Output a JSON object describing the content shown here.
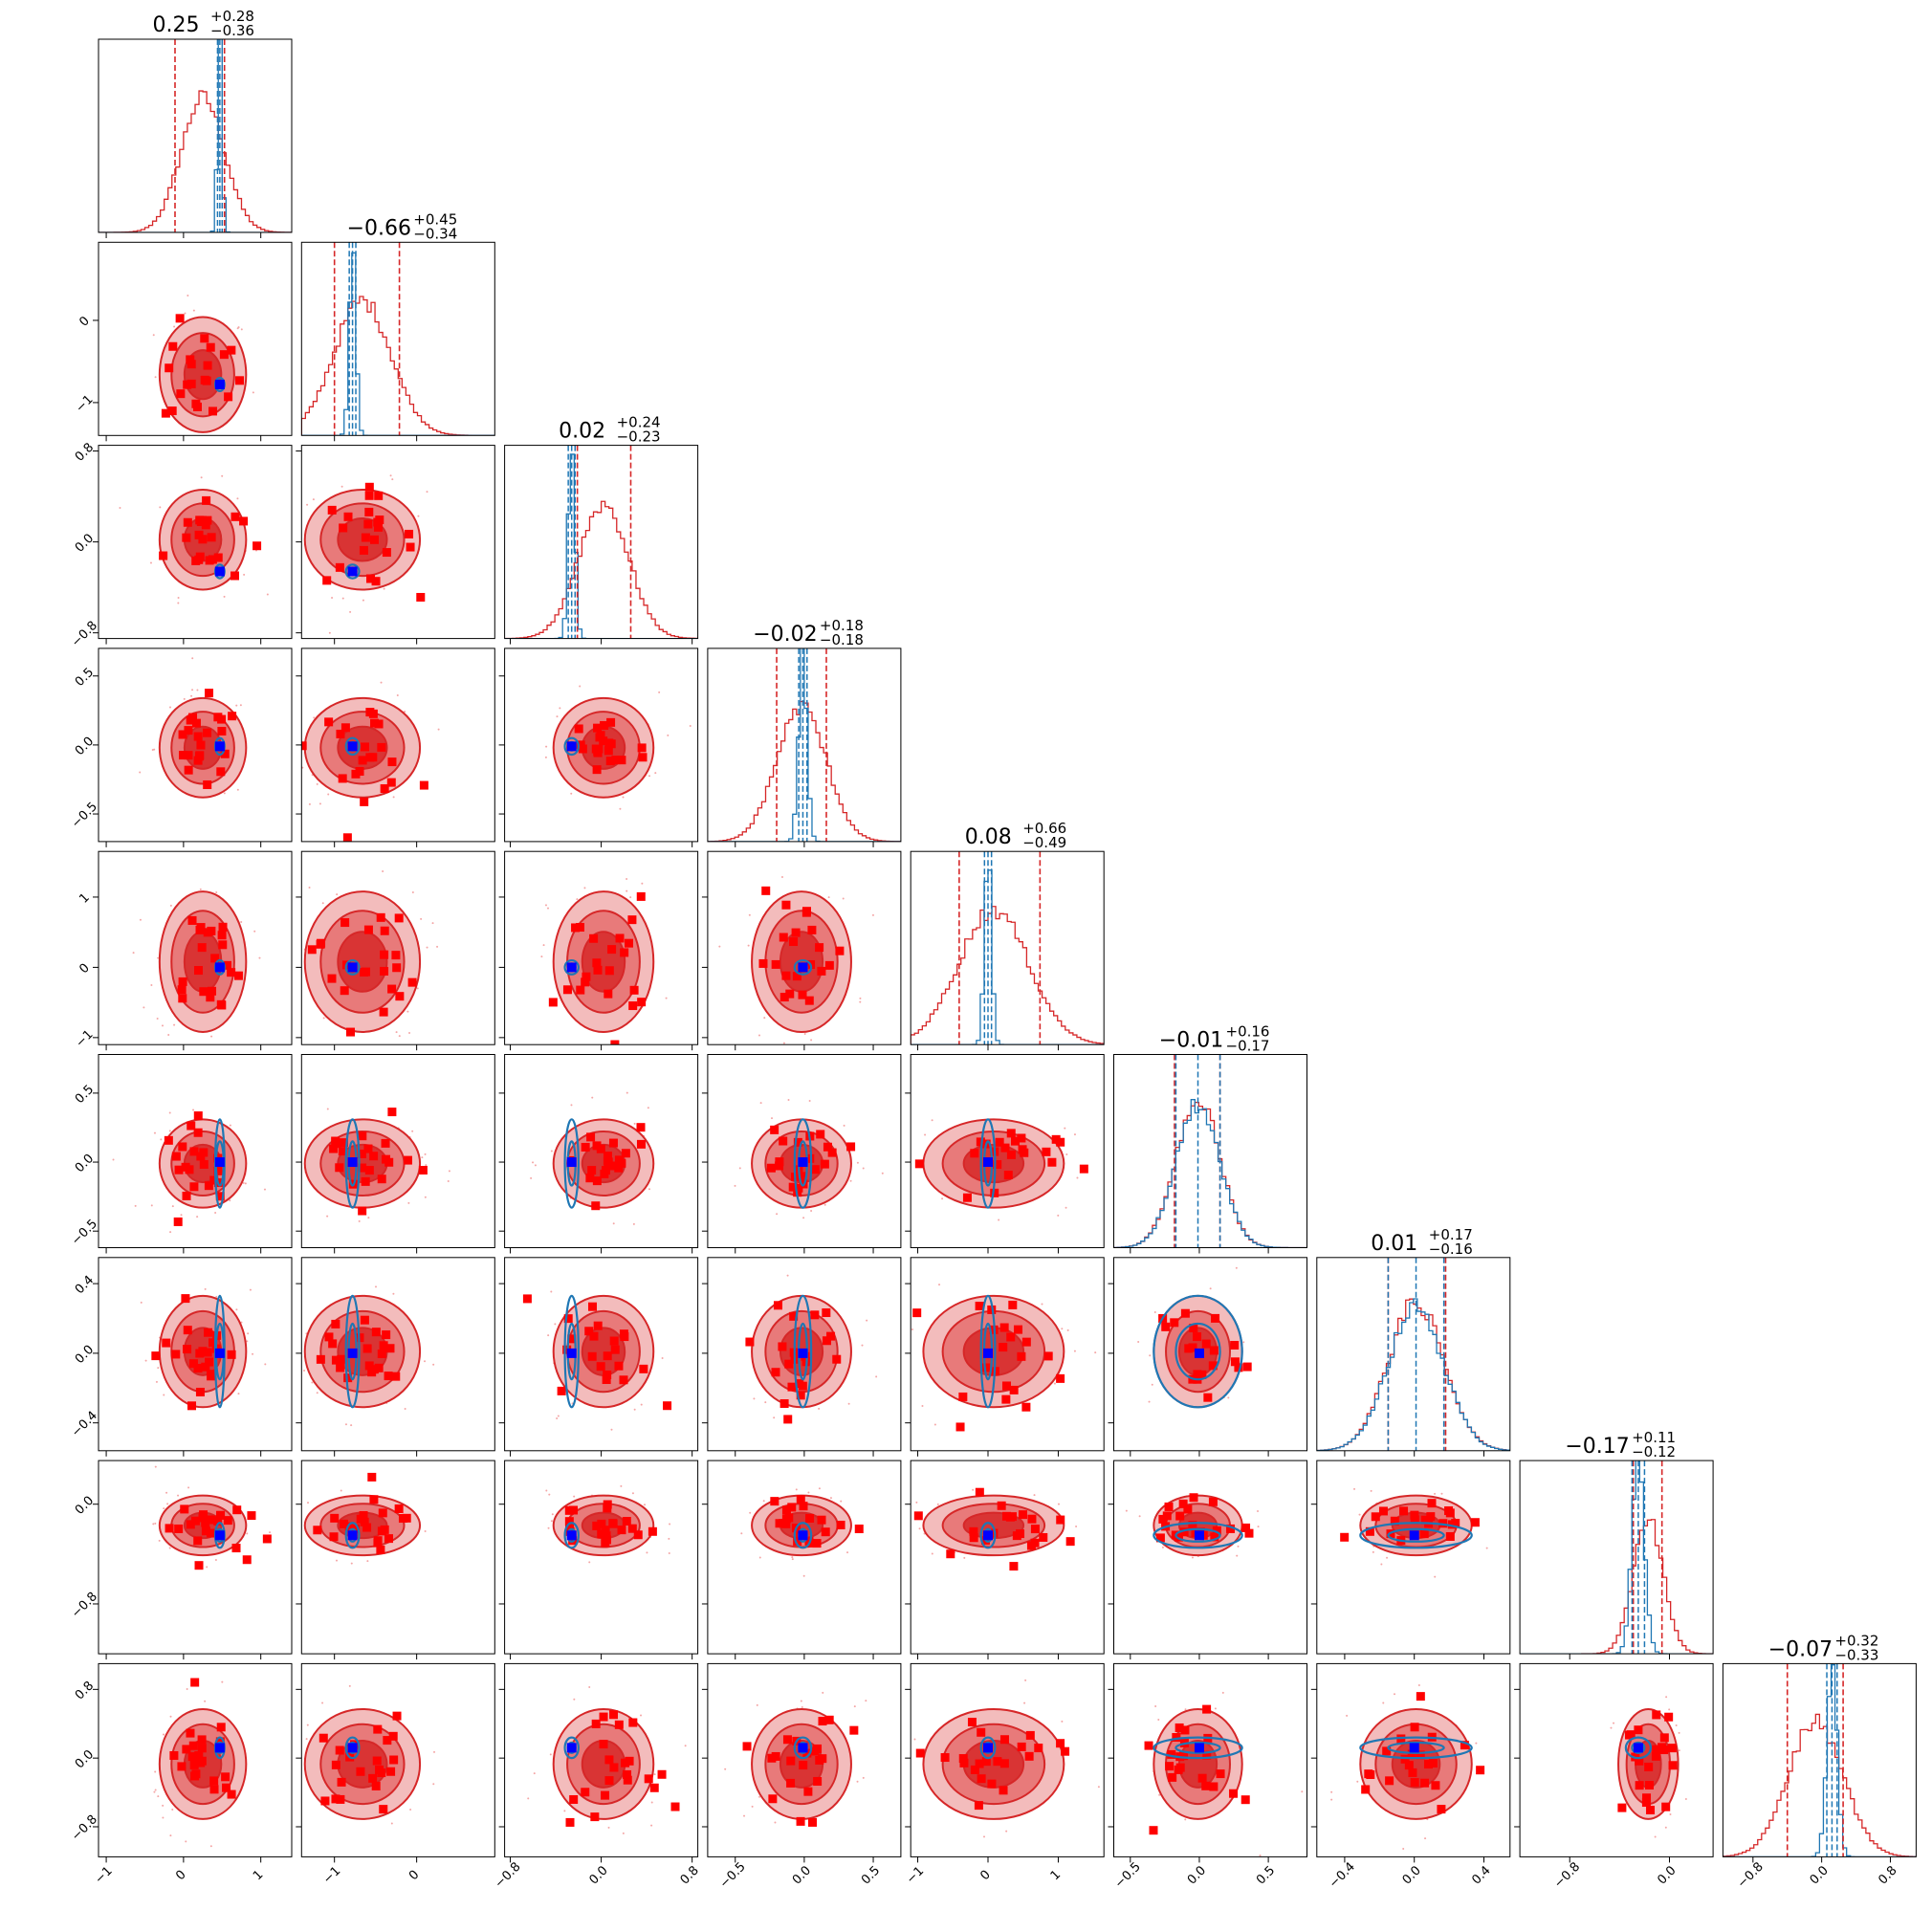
{
  "chart_data": {
    "type": "corner",
    "n_params": 9,
    "colors": {
      "primary": "#d62728",
      "secondary": "#1f77b4",
      "marker_red": "#ff0000",
      "marker_blue": "#0000ff"
    },
    "diagonal_titles": [
      {
        "median": "0.25",
        "plus": "+0.28",
        "minus": "−0.36"
      },
      {
        "median": "−0.66",
        "plus": "+0.45",
        "minus": "−0.34"
      },
      {
        "median": "0.02",
        "plus": "+0.24",
        "minus": "−0.23"
      },
      {
        "median": "−0.02",
        "plus": "+0.18",
        "minus": "−0.18"
      },
      {
        "median": "0.08",
        "plus": "+0.66",
        "minus": "−0.49"
      },
      {
        "median": "−0.01",
        "plus": "+0.16",
        "minus": "−0.17"
      },
      {
        "median": "0.01",
        "plus": "+0.17",
        "minus": "−0.16"
      },
      {
        "median": "−0.17",
        "plus": "+0.11",
        "minus": "−0.12"
      },
      {
        "median": "−0.07",
        "plus": "+0.32",
        "minus": "−0.33"
      }
    ],
    "parameters": [
      {
        "range": [
          -1.1,
          1.4
        ],
        "ticks": [
          -1,
          0,
          1
        ],
        "tick_labels": [
          "−1",
          "0",
          "1"
        ],
        "median": 0.25,
        "lo": -0.11,
        "hi": 0.53,
        "truth": 0.47,
        "red_sd": 0.28,
        "blue_sd": 0.03
      },
      {
        "range": [
          -1.4,
          0.95
        ],
        "ticks": [
          -1,
          0
        ],
        "tick_labels": [
          "−1",
          "0"
        ],
        "median": -0.66,
        "lo": -1.0,
        "hi": -0.21,
        "truth": -0.78,
        "red_sd": 0.35,
        "blue_sd": 0.04
      },
      {
        "range": [
          -0.85,
          0.85
        ],
        "ticks": [
          -0.8,
          0.0,
          0.8
        ],
        "tick_labels": [
          "−0.8",
          "0.0",
          "0.8"
        ],
        "median": 0.02,
        "lo": -0.21,
        "hi": 0.26,
        "truth": -0.26,
        "red_sd": 0.22,
        "blue_sd": 0.03
      },
      {
        "range": [
          -0.7,
          0.7
        ],
        "ticks": [
          -0.5,
          0.0,
          0.5
        ],
        "tick_labels": [
          "−0.5",
          "0.0",
          "0.5"
        ],
        "median": -0.02,
        "lo": -0.2,
        "hi": 0.16,
        "truth": -0.01,
        "red_sd": 0.18,
        "blue_sd": 0.03
      },
      {
        "range": [
          -1.1,
          1.65
        ],
        "ticks": [
          -1,
          0,
          1
        ],
        "tick_labels": [
          "−1",
          "0",
          "1"
        ],
        "median": 0.08,
        "lo": -0.41,
        "hi": 0.74,
        "truth": 0.0,
        "red_sd": 0.5,
        "blue_sd": 0.05
      },
      {
        "range": [
          -0.62,
          0.78
        ],
        "ticks": [
          -0.5,
          0.0,
          0.5
        ],
        "tick_labels": [
          "−0.5",
          "0.0",
          "0.5"
        ],
        "median": -0.01,
        "lo": -0.18,
        "hi": 0.15,
        "truth": 0.0,
        "red_sd": 0.16,
        "blue_sd": 0.16
      },
      {
        "range": [
          -0.56,
          0.55
        ],
        "ticks": [
          -0.4,
          0.0,
          0.4
        ],
        "tick_labels": [
          "−0.4",
          "0.0",
          "0.4"
        ],
        "median": 0.01,
        "lo": -0.15,
        "hi": 0.18,
        "truth": 0.0,
        "red_sd": 0.16,
        "blue_sd": 0.16
      },
      {
        "range": [
          -1.2,
          0.35
        ],
        "ticks": [
          -0.8,
          0.0
        ],
        "tick_labels": [
          "−0.8",
          "0.0"
        ],
        "median": -0.17,
        "lo": -0.29,
        "hi": -0.06,
        "truth": -0.25,
        "red_sd": 0.12,
        "blue_sd": 0.05
      },
      {
        "range": [
          -1.15,
          1.1
        ],
        "ticks": [
          -0.8,
          0.0,
          0.8
        ],
        "tick_labels": [
          "−0.8",
          "0.0",
          "0.8"
        ],
        "median": -0.07,
        "lo": -0.4,
        "hi": 0.25,
        "truth": 0.12,
        "red_sd": 0.32,
        "blue_sd": 0.06
      }
    ],
    "grid": false,
    "legend": "none",
    "xlabel": "",
    "ylabel": ""
  }
}
